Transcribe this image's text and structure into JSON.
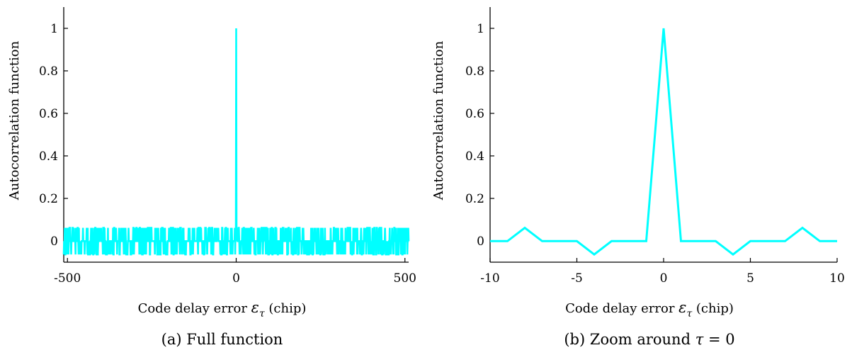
{
  "chart_data": [
    {
      "type": "line",
      "caption": "(a) Full function",
      "xlabel_prefix": "Code delay error ",
      "xlabel_symbol": "ε",
      "xlabel_subscript": "τ",
      "xlabel_suffix": " (chip)",
      "ylabel": "Autocorrelation function",
      "xlim": [
        -511,
        511
      ],
      "ylim": [
        -0.1,
        1.1
      ],
      "xticks": [
        -500,
        0,
        500
      ],
      "yticks": [
        0,
        0.2,
        0.4,
        0.6,
        0.8,
        1
      ],
      "ytick_labels": [
        "0",
        "0.2",
        "0.4",
        "0.6",
        "0.8",
        "1"
      ],
      "xtick_labels": [
        "-500",
        "0",
        "500"
      ],
      "line_color": "#00ffff",
      "series": [
        {
          "kind": "gold-code-autocorrelation",
          "length": 1023,
          "peak": 1,
          "levels": [
            -0.0635,
            -0.001,
            0.0616
          ]
        }
      ]
    },
    {
      "type": "line",
      "caption_prefix": "(b) Zoom around ",
      "caption_symbol": "τ",
      "caption_suffix": " = 0",
      "xlabel_prefix": "Code delay error ",
      "xlabel_symbol": "ε",
      "xlabel_subscript": "τ",
      "xlabel_suffix": " (chip)",
      "ylabel": "Autocorrelation function",
      "xlim": [
        -10,
        10
      ],
      "ylim": [
        -0.1,
        1.1
      ],
      "xticks": [
        -10,
        -5,
        0,
        5,
        10
      ],
      "yticks": [
        0,
        0.2,
        0.4,
        0.6,
        0.8,
        1
      ],
      "ytick_labels": [
        "0",
        "0.2",
        "0.4",
        "0.6",
        "0.8",
        "1"
      ],
      "xtick_labels": [
        "-10",
        "-5",
        "0",
        "5",
        "10"
      ],
      "line_color": "#00ffff",
      "series": [
        {
          "x": [
            -10,
            -9,
            -8,
            -7,
            -6,
            -5,
            -4,
            -3,
            -2,
            -1,
            0,
            1,
            2,
            3,
            4,
            5,
            6,
            7,
            8,
            9,
            10
          ],
          "y": [
            -0.001,
            -0.001,
            0.0616,
            -0.001,
            -0.001,
            -0.001,
            -0.0635,
            -0.001,
            -0.001,
            -0.001,
            1,
            -0.001,
            -0.001,
            -0.001,
            -0.0635,
            -0.001,
            -0.001,
            -0.001,
            0.0616,
            -0.001,
            -0.001
          ]
        }
      ]
    }
  ]
}
